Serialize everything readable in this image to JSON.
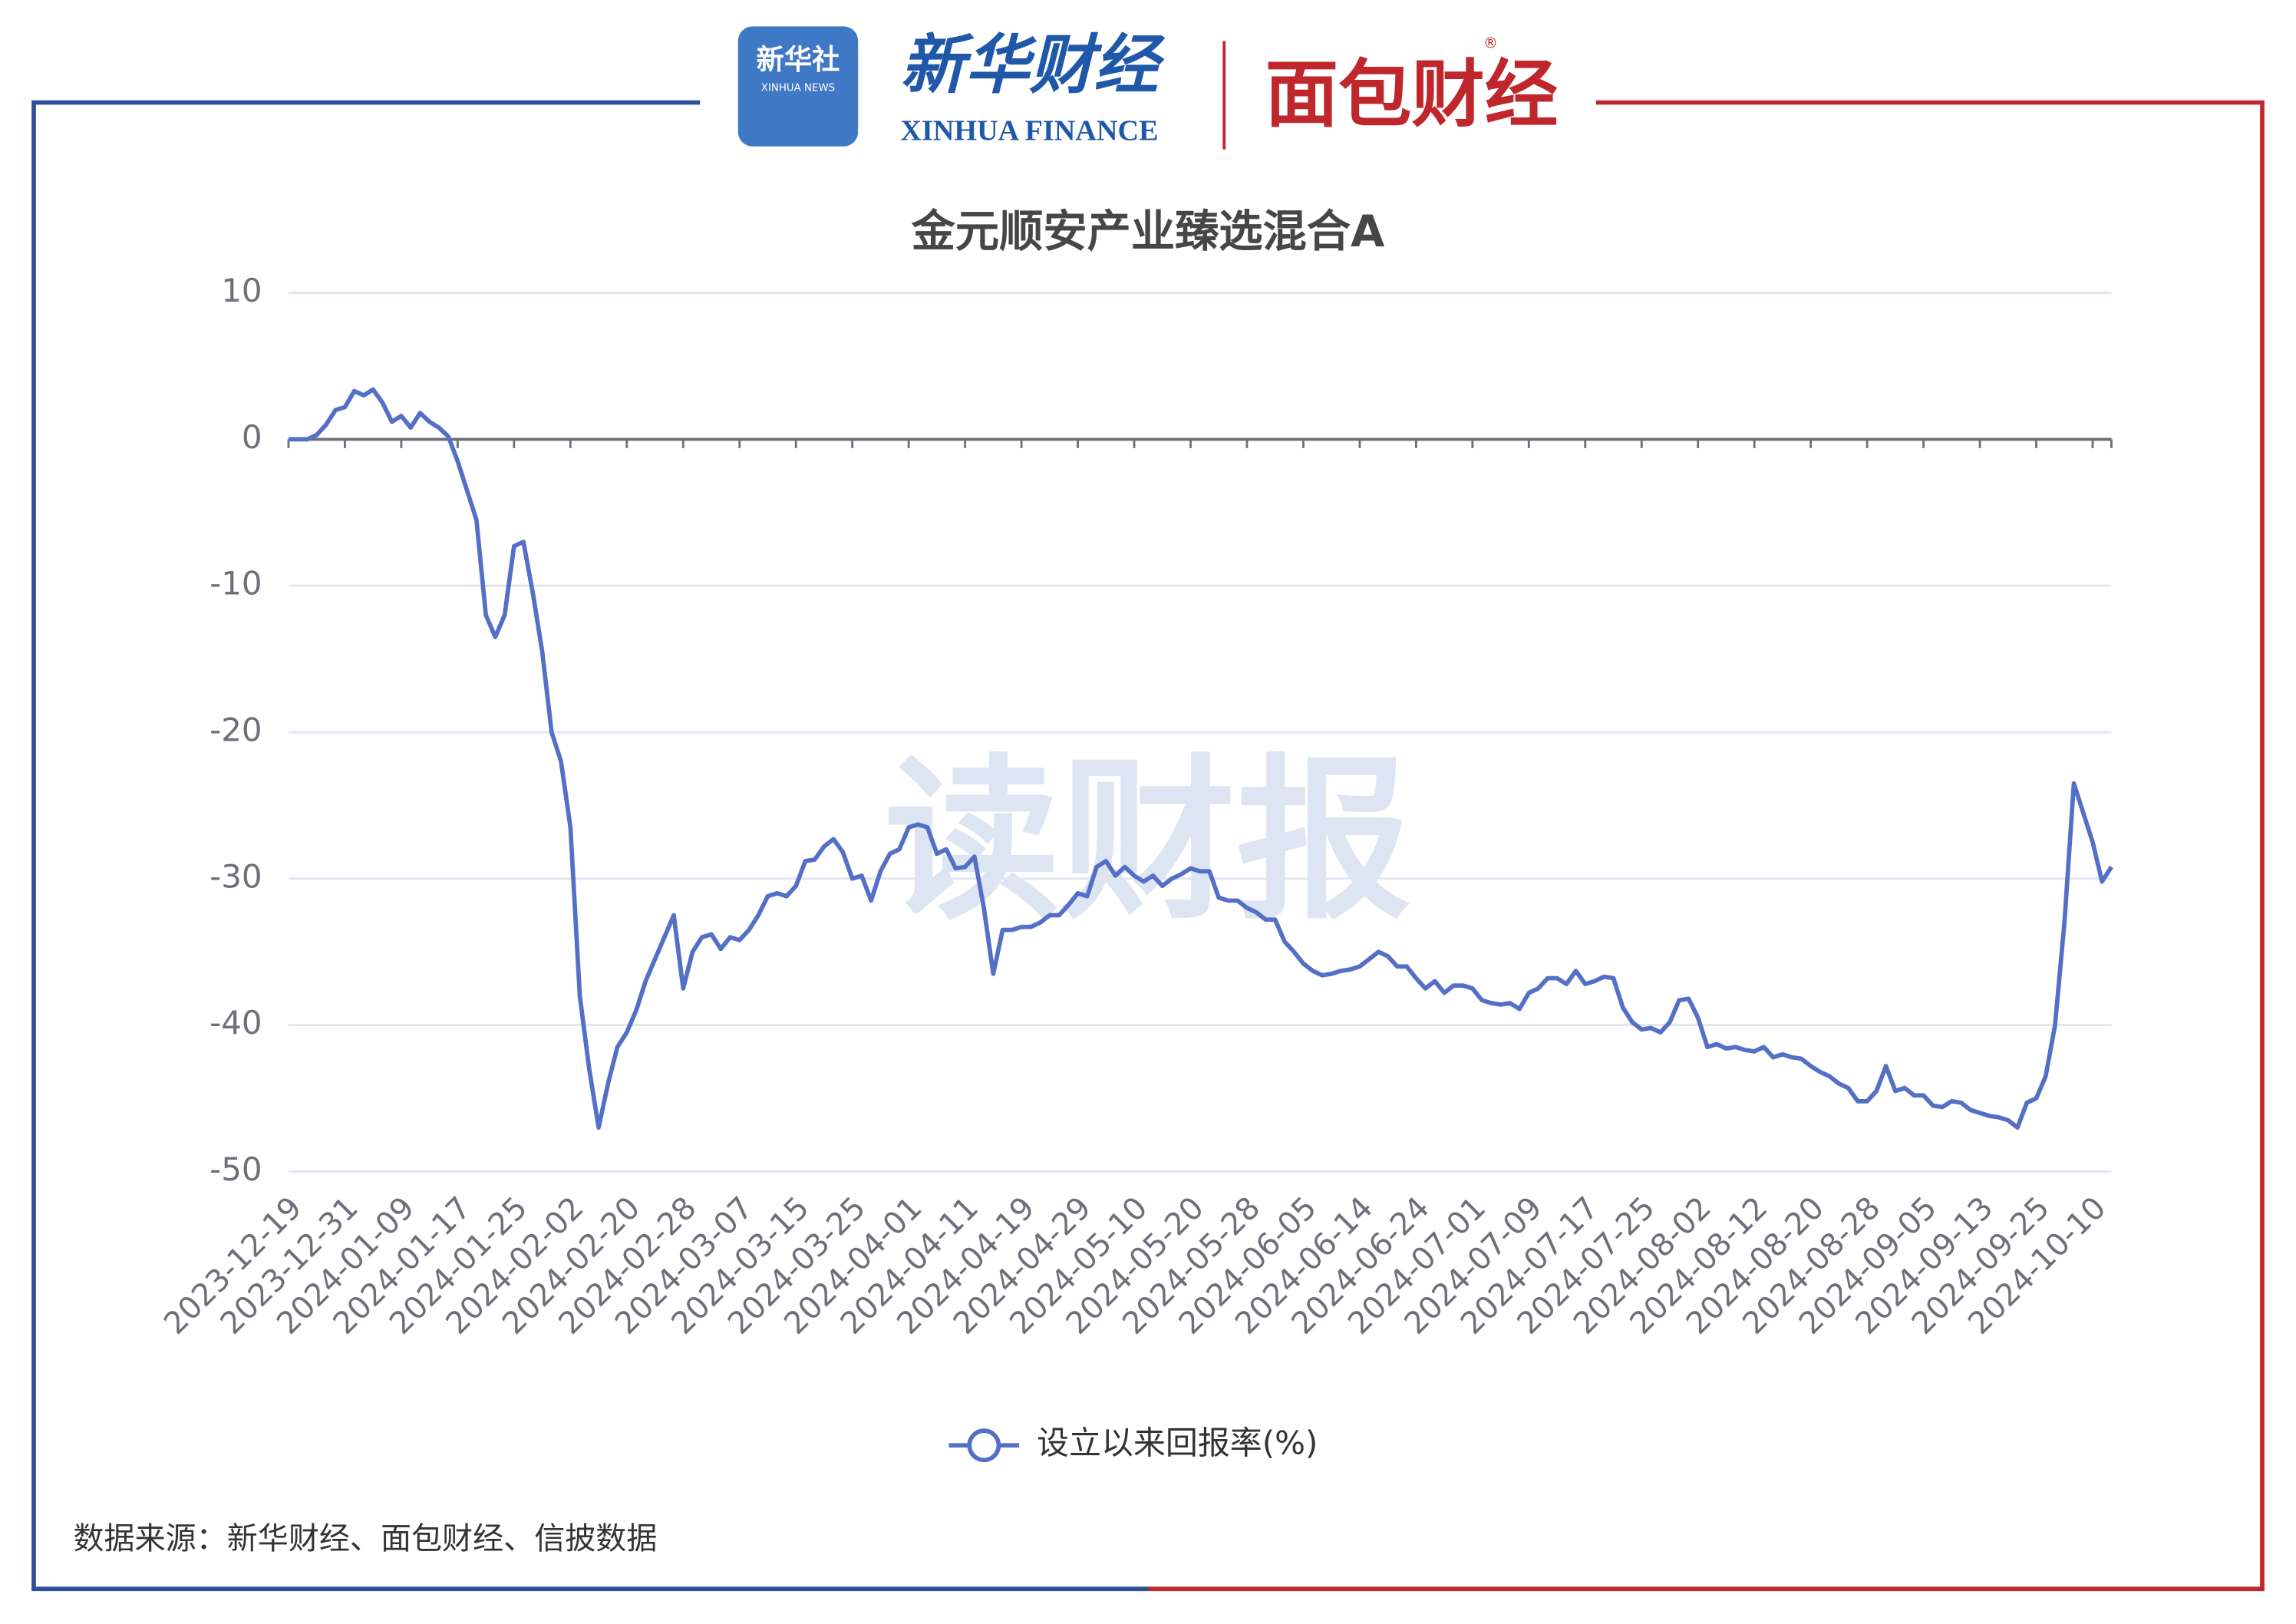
{
  "logos": {
    "xinhua_she": "新华社",
    "xinhua_she_en": "XINHUA NEWS",
    "xinhua_finance": "新华财经",
    "xinhua_finance_en": "XINHUA FINANCE",
    "mianbao": "面包财经",
    "registered": "®"
  },
  "watermark": "读财报",
  "source": "数据来源：新华财经、面包财经、信披数据",
  "chart_data": {
    "type": "line",
    "title": "金元顺安产业臻选混合A",
    "categories": [
      "2023-12-19",
      null,
      null,
      null,
      null,
      null,
      "2023-12-31",
      null,
      null,
      null,
      null,
      null,
      "2024-01-09",
      null,
      null,
      null,
      null,
      null,
      "2024-01-17",
      null,
      null,
      null,
      null,
      null,
      "2024-01-25",
      null,
      null,
      null,
      null,
      null,
      "2024-02-02",
      null,
      null,
      null,
      null,
      null,
      "2024-02-20",
      null,
      null,
      null,
      null,
      null,
      "2024-02-28",
      null,
      null,
      null,
      null,
      null,
      "2024-03-07",
      null,
      null,
      null,
      null,
      null,
      "2024-03-15",
      null,
      null,
      null,
      null,
      null,
      "2024-03-25",
      null,
      null,
      null,
      null,
      null,
      "2024-04-01",
      null,
      null,
      null,
      null,
      null,
      "2024-04-11",
      null,
      null,
      null,
      null,
      null,
      "2024-04-19",
      null,
      null,
      null,
      null,
      null,
      "2024-04-29",
      null,
      null,
      null,
      null,
      null,
      "2024-05-10",
      null,
      null,
      null,
      null,
      null,
      "2024-05-20",
      null,
      null,
      null,
      null,
      null,
      "2024-05-28",
      null,
      null,
      null,
      null,
      null,
      "2024-06-05",
      null,
      null,
      null,
      null,
      null,
      "2024-06-14",
      null,
      null,
      null,
      null,
      null,
      "2024-06-24",
      null,
      null,
      null,
      null,
      null,
      "2024-07-01",
      null,
      null,
      null,
      null,
      null,
      "2024-07-09",
      null,
      null,
      null,
      null,
      null,
      "2024-07-17",
      null,
      null,
      null,
      null,
      null,
      "2024-07-25",
      null,
      null,
      null,
      null,
      null,
      "2024-08-02",
      null,
      null,
      null,
      null,
      null,
      "2024-08-12",
      null,
      null,
      null,
      null,
      null,
      "2024-08-20",
      null,
      null,
      null,
      null,
      null,
      "2024-08-28",
      null,
      null,
      null,
      null,
      null,
      "2024-09-05",
      null,
      null,
      null,
      null,
      null,
      "2024-09-13",
      null,
      null,
      null,
      null,
      null,
      "2024-09-25",
      null,
      null,
      null,
      null,
      null,
      "2024-10-10",
      null,
      null
    ],
    "series": [
      {
        "name": "设立以来回报率(%)",
        "color": "#5470c6",
        "values": [
          0,
          0,
          0,
          0.3,
          1,
          2,
          2.2,
          3.3,
          3,
          3.4,
          2.5,
          1.2,
          1.6,
          0.8,
          1.8,
          1.2,
          0.8,
          0.2,
          -1.5,
          -3.5,
          -5.5,
          -12,
          -13.5,
          -12,
          -7.3,
          -7,
          -10.5,
          -14.5,
          -20,
          -22,
          -26.5,
          -38,
          -43,
          -47,
          -44,
          -41.5,
          -40.5,
          -39,
          -37,
          -35.5,
          -34,
          -32.5,
          -37.5,
          -35,
          -34,
          -33.8,
          -34.8,
          -34,
          -34.2,
          -33.5,
          -32.5,
          -31.2,
          -31,
          -31.2,
          -30.5,
          -28.8,
          -28.7,
          -27.8,
          -27.3,
          -28.2,
          -30,
          -29.8,
          -31.5,
          -29.5,
          -28.3,
          -28,
          -26.5,
          -26.3,
          -26.5,
          -28.3,
          -28,
          -29.3,
          -29.2,
          -28.5,
          -32,
          -36.5,
          -33.5,
          -33.5,
          -33.3,
          -33.3,
          -33,
          -32.5,
          -32.5,
          -31.8,
          -31,
          -31.2,
          -29.2,
          -28.8,
          -29.8,
          -29.2,
          -29.8,
          -30.2,
          -29.8,
          -30.5,
          -30,
          -29.7,
          -29.3,
          -29.5,
          -29.5,
          -31.3,
          -31.5,
          -31.5,
          -32,
          -32.3,
          -32.8,
          -32.8,
          -34.3,
          -35,
          -35.8,
          -36.3,
          -36.6,
          -36.5,
          -36.3,
          -36.2,
          -36,
          -35.5,
          -35,
          -35.3,
          -36,
          -36,
          -36.8,
          -37.5,
          -37,
          -37.8,
          -37.3,
          -37.3,
          -37.5,
          -38.3,
          -38.5,
          -38.6,
          -38.5,
          -38.9,
          -37.8,
          -37.5,
          -36.8,
          -36.8,
          -37.2,
          -36.3,
          -37.2,
          -37,
          -36.7,
          -36.8,
          -38.8,
          -39.8,
          -40.3,
          -40.2,
          -40.5,
          -39.8,
          -38.3,
          -38.2,
          -39.5,
          -41.5,
          -41.3,
          -41.6,
          -41.5,
          -41.7,
          -41.8,
          -41.5,
          -42.2,
          -42,
          -42.2,
          -42.3,
          -42.8,
          -43.2,
          -43.5,
          -44,
          -44.3,
          -45.2,
          -45.2,
          -44.5,
          -42.8,
          -44.5,
          -44.3,
          -44.8,
          -44.8,
          -45.5,
          -45.6,
          -45.2,
          -45.3,
          -45.8,
          -46,
          -46.2,
          -46.3,
          -46.5,
          -47,
          -45.3,
          -45,
          -43.5,
          -40,
          -33,
          -23.5,
          -25.5,
          -27.5,
          -30.2,
          -29.2
        ]
      }
    ],
    "ylim": [
      -50,
      10
    ],
    "yticks": [
      10,
      0,
      -10,
      -20,
      -30,
      -40,
      -50
    ],
    "grid": true,
    "legend": "bottom"
  }
}
